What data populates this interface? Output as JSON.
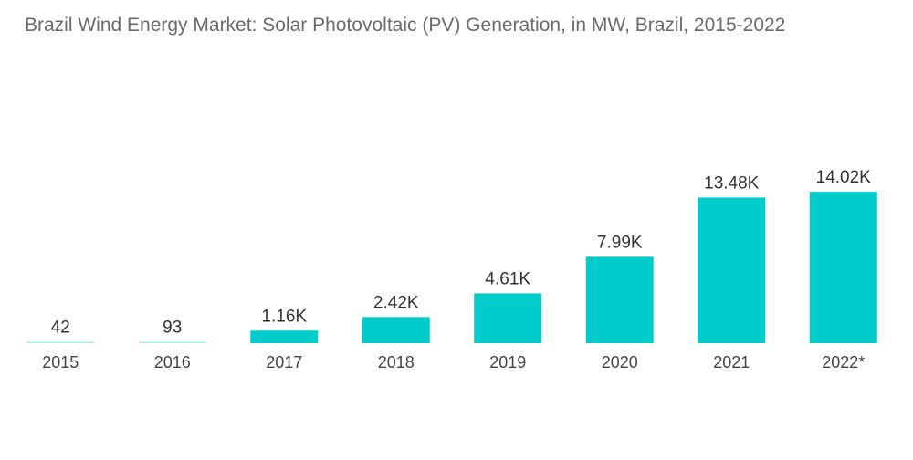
{
  "chart_data": {
    "type": "bar",
    "title": "Brazil Wind Energy Market: Solar Photovoltaic (PV) Generation, in MW, Brazil, 2015-2022",
    "categories": [
      "2015",
      "2016",
      "2017",
      "2018",
      "2019",
      "2020",
      "2021",
      "2022*"
    ],
    "values": [
      42,
      93,
      1160,
      2420,
      4610,
      7990,
      13480,
      14020
    ],
    "data_labels": [
      "42",
      "93",
      "1.16K",
      "2.42K",
      "4.61K",
      "7.99K",
      "13.48K",
      "14.02K"
    ],
    "xlabel": "",
    "ylabel": "",
    "ylim": [
      0,
      14020
    ],
    "grid": false,
    "legend": "none",
    "bar_color": "#00cccc",
    "baseline_color": "#a8eeee"
  }
}
